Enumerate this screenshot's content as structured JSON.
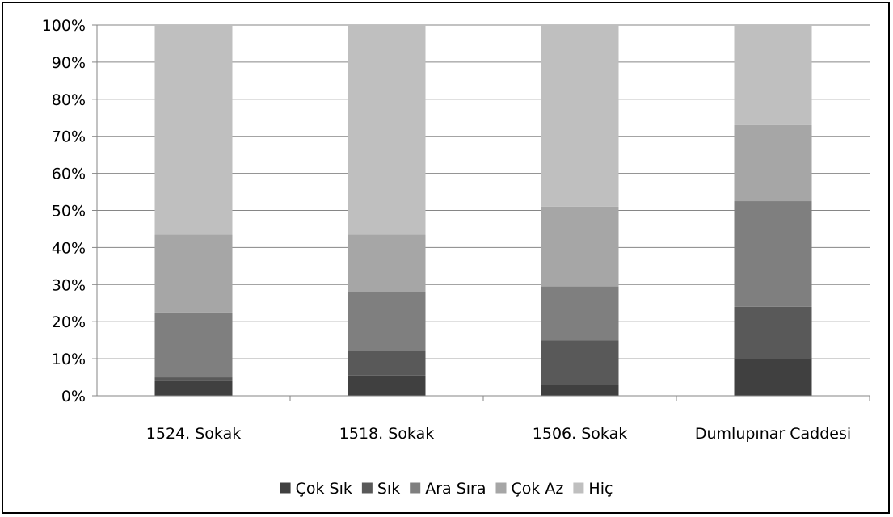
{
  "chart_data": {
    "type": "bar",
    "stacked": true,
    "percent": true,
    "title": "",
    "xlabel": "",
    "ylabel": "",
    "ylim": [
      0,
      100
    ],
    "yticks": [
      "0%",
      "10%",
      "20%",
      "30%",
      "40%",
      "50%",
      "60%",
      "70%",
      "80%",
      "90%",
      "100%"
    ],
    "grid": true,
    "legend_position": "bottom",
    "categories": [
      "1524. Sokak",
      "1518. Sokak",
      "1506. Sokak",
      "Dumlupınar Caddesi"
    ],
    "series": [
      {
        "name": "Çok Sık",
        "color": "#404040",
        "values": [
          4,
          5.5,
          3,
          10
        ]
      },
      {
        "name": "Sık",
        "color": "#595959",
        "values": [
          1,
          6.5,
          12,
          14
        ]
      },
      {
        "name": "Ara Sıra",
        "color": "#7f7f7f",
        "values": [
          17.5,
          16,
          14.5,
          28.5
        ]
      },
      {
        "name": "Çok Az",
        "color": "#a6a6a6",
        "values": [
          21,
          15.5,
          21.5,
          20.5
        ]
      },
      {
        "name": "Hiç",
        "color": "#bfbfbf",
        "values": [
          56.5,
          56.5,
          49,
          27
        ]
      }
    ]
  }
}
